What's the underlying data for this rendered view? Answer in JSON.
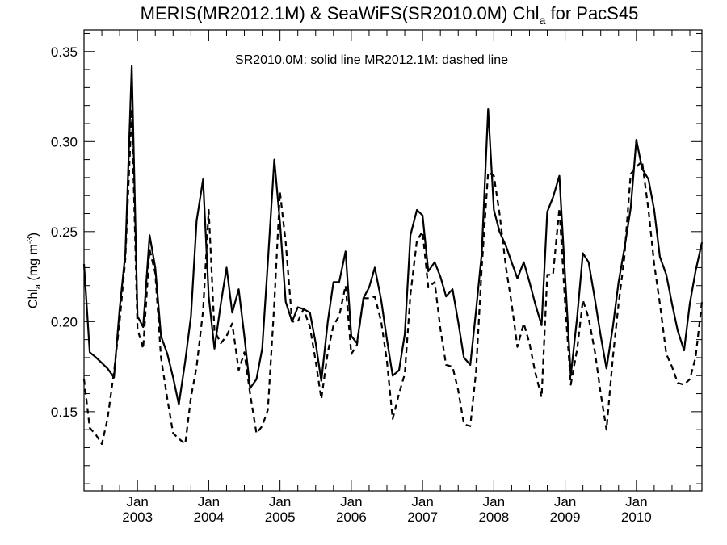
{
  "chart_data": {
    "type": "line",
    "title": "MERIS(MR2012.1M) & SeaWiFS(SR2010.0M)  Chl",
    "title_sub": "a",
    "title_suffix": " for PacS45",
    "annotation": "SR2010.0M: solid line   MR2012.1M: dashed line",
    "ylabel": "Chl",
    "ylabel_sub": "a",
    "ylabel_units_prefix": " (mg m",
    "ylabel_units_sup": "-3",
    "ylabel_units_suffix": ")",
    "ylim": [
      0.106,
      0.362
    ],
    "xlim": [
      2002.25,
      2010.92
    ],
    "yticks": [
      {
        "value": 0.15,
        "label": "0.15"
      },
      {
        "value": 0.2,
        "label": "0.20"
      },
      {
        "value": 0.25,
        "label": "0.25"
      },
      {
        "value": 0.3,
        "label": "0.30"
      },
      {
        "value": 0.35,
        "label": "0.35"
      }
    ],
    "xticks": [
      {
        "value": 2003,
        "month": "Jan",
        "year": "2003"
      },
      {
        "value": 2004,
        "month": "Jan",
        "year": "2004"
      },
      {
        "value": 2005,
        "month": "Jan",
        "year": "2005"
      },
      {
        "value": 2006,
        "month": "Jan",
        "year": "2006"
      },
      {
        "value": 2007,
        "month": "Jan",
        "year": "2007"
      },
      {
        "value": 2008,
        "month": "Jan",
        "year": "2008"
      },
      {
        "value": 2009,
        "month": "Jan",
        "year": "2009"
      },
      {
        "value": 2010,
        "month": "Jan",
        "year": "2010"
      }
    ],
    "series": [
      {
        "style": "solid",
        "color": "#000000",
        "points": [
          [
            2002.25,
            0.232
          ],
          [
            2002.33,
            0.183
          ],
          [
            2002.42,
            0.18
          ],
          [
            2002.5,
            0.177
          ],
          [
            2002.58,
            0.174
          ],
          [
            2002.67,
            0.169
          ],
          [
            2002.75,
            0.207
          ],
          [
            2002.83,
            0.238
          ],
          [
            2002.92,
            0.342
          ],
          [
            2003.0,
            0.203
          ],
          [
            2003.08,
            0.197
          ],
          [
            2003.17,
            0.248
          ],
          [
            2003.25,
            0.23
          ],
          [
            2003.33,
            0.192
          ],
          [
            2003.42,
            0.182
          ],
          [
            2003.5,
            0.169
          ],
          [
            2003.58,
            0.154
          ],
          [
            2003.67,
            0.178
          ],
          [
            2003.75,
            0.203
          ],
          [
            2003.83,
            0.256
          ],
          [
            2003.92,
            0.279
          ],
          [
            2004.0,
            0.214
          ],
          [
            2004.08,
            0.185
          ],
          [
            2004.17,
            0.21
          ],
          [
            2004.25,
            0.23
          ],
          [
            2004.33,
            0.205
          ],
          [
            2004.42,
            0.218
          ],
          [
            2004.5,
            0.192
          ],
          [
            2004.58,
            0.163
          ],
          [
            2004.67,
            0.168
          ],
          [
            2004.75,
            0.185
          ],
          [
            2004.83,
            0.233
          ],
          [
            2004.92,
            0.29
          ],
          [
            2005.0,
            0.255
          ],
          [
            2005.08,
            0.211
          ],
          [
            2005.17,
            0.2
          ],
          [
            2005.25,
            0.208
          ],
          [
            2005.33,
            0.207
          ],
          [
            2005.42,
            0.205
          ],
          [
            2005.5,
            0.188
          ],
          [
            2005.58,
            0.167
          ],
          [
            2005.67,
            0.2
          ],
          [
            2005.75,
            0.222
          ],
          [
            2005.83,
            0.222
          ],
          [
            2005.92,
            0.239
          ],
          [
            2006.0,
            0.192
          ],
          [
            2006.08,
            0.188
          ],
          [
            2006.17,
            0.213
          ],
          [
            2006.25,
            0.219
          ],
          [
            2006.33,
            0.23
          ],
          [
            2006.42,
            0.212
          ],
          [
            2006.5,
            0.19
          ],
          [
            2006.58,
            0.17
          ],
          [
            2006.67,
            0.173
          ],
          [
            2006.75,
            0.193
          ],
          [
            2006.83,
            0.248
          ],
          [
            2006.92,
            0.262
          ],
          [
            2007.0,
            0.259
          ],
          [
            2007.08,
            0.228
          ],
          [
            2007.17,
            0.233
          ],
          [
            2007.25,
            0.225
          ],
          [
            2007.33,
            0.214
          ],
          [
            2007.42,
            0.218
          ],
          [
            2007.5,
            0.2
          ],
          [
            2007.58,
            0.18
          ],
          [
            2007.67,
            0.176
          ],
          [
            2007.75,
            0.206
          ],
          [
            2007.83,
            0.238
          ],
          [
            2007.92,
            0.318
          ],
          [
            2008.0,
            0.262
          ],
          [
            2008.08,
            0.25
          ],
          [
            2008.17,
            0.242
          ],
          [
            2008.25,
            0.233
          ],
          [
            2008.33,
            0.224
          ],
          [
            2008.42,
            0.233
          ],
          [
            2008.5,
            0.222
          ],
          [
            2008.58,
            0.21
          ],
          [
            2008.67,
            0.198
          ],
          [
            2008.75,
            0.261
          ],
          [
            2008.83,
            0.269
          ],
          [
            2008.92,
            0.281
          ],
          [
            2009.0,
            0.225
          ],
          [
            2009.08,
            0.17
          ],
          [
            2009.17,
            0.203
          ],
          [
            2009.25,
            0.238
          ],
          [
            2009.33,
            0.233
          ],
          [
            2009.42,
            0.212
          ],
          [
            2009.5,
            0.192
          ],
          [
            2009.58,
            0.174
          ],
          [
            2009.67,
            0.197
          ],
          [
            2009.75,
            0.222
          ],
          [
            2009.83,
            0.24
          ],
          [
            2009.92,
            0.263
          ],
          [
            2010.0,
            0.301
          ],
          [
            2010.08,
            0.285
          ],
          [
            2010.17,
            0.279
          ],
          [
            2010.25,
            0.262
          ],
          [
            2010.33,
            0.236
          ],
          [
            2010.42,
            0.226
          ],
          [
            2010.5,
            0.21
          ],
          [
            2010.58,
            0.195
          ],
          [
            2010.67,
            0.184
          ],
          [
            2010.75,
            0.21
          ],
          [
            2010.83,
            0.228
          ],
          [
            2010.92,
            0.244
          ]
        ]
      },
      {
        "style": "dashed",
        "color": "#000000",
        "points": [
          [
            2002.25,
            0.168
          ],
          [
            2002.33,
            0.141
          ],
          [
            2002.42,
            0.137
          ],
          [
            2002.5,
            0.132
          ],
          [
            2002.58,
            0.146
          ],
          [
            2002.67,
            0.172
          ],
          [
            2002.75,
            0.2
          ],
          [
            2002.83,
            0.235
          ],
          [
            2002.92,
            0.318
          ],
          [
            2003.0,
            0.196
          ],
          [
            2003.08,
            0.185
          ],
          [
            2003.17,
            0.24
          ],
          [
            2003.25,
            0.227
          ],
          [
            2003.33,
            0.18
          ],
          [
            2003.42,
            0.157
          ],
          [
            2003.5,
            0.138
          ],
          [
            2003.58,
            0.135
          ],
          [
            2003.67,
            0.132
          ],
          [
            2003.75,
            0.158
          ],
          [
            2003.83,
            0.175
          ],
          [
            2003.92,
            0.206
          ],
          [
            2004.0,
            0.262
          ],
          [
            2004.08,
            0.195
          ],
          [
            2004.17,
            0.188
          ],
          [
            2004.25,
            0.192
          ],
          [
            2004.33,
            0.199
          ],
          [
            2004.42,
            0.173
          ],
          [
            2004.5,
            0.183
          ],
          [
            2004.58,
            0.16
          ],
          [
            2004.67,
            0.138
          ],
          [
            2004.75,
            0.142
          ],
          [
            2004.83,
            0.151
          ],
          [
            2004.92,
            0.21
          ],
          [
            2005.0,
            0.272
          ],
          [
            2005.08,
            0.244
          ],
          [
            2005.17,
            0.2
          ],
          [
            2005.25,
            0.2
          ],
          [
            2005.33,
            0.207
          ],
          [
            2005.42,
            0.197
          ],
          [
            2005.5,
            0.178
          ],
          [
            2005.58,
            0.157
          ],
          [
            2005.67,
            0.183
          ],
          [
            2005.75,
            0.198
          ],
          [
            2005.83,
            0.203
          ],
          [
            2005.92,
            0.22
          ],
          [
            2006.0,
            0.182
          ],
          [
            2006.08,
            0.187
          ],
          [
            2006.17,
            0.213
          ],
          [
            2006.25,
            0.213
          ],
          [
            2006.33,
            0.214
          ],
          [
            2006.42,
            0.2
          ],
          [
            2006.5,
            0.178
          ],
          [
            2006.58,
            0.146
          ],
          [
            2006.67,
            0.16
          ],
          [
            2006.75,
            0.171
          ],
          [
            2006.83,
            0.215
          ],
          [
            2006.92,
            0.245
          ],
          [
            2007.0,
            0.25
          ],
          [
            2007.08,
            0.219
          ],
          [
            2007.17,
            0.222
          ],
          [
            2007.25,
            0.196
          ],
          [
            2007.33,
            0.176
          ],
          [
            2007.42,
            0.175
          ],
          [
            2007.5,
            0.162
          ],
          [
            2007.58,
            0.143
          ],
          [
            2007.67,
            0.142
          ],
          [
            2007.75,
            0.172
          ],
          [
            2007.83,
            0.23
          ],
          [
            2007.92,
            0.283
          ],
          [
            2008.0,
            0.281
          ],
          [
            2008.08,
            0.26
          ],
          [
            2008.17,
            0.23
          ],
          [
            2008.25,
            0.21
          ],
          [
            2008.33,
            0.186
          ],
          [
            2008.42,
            0.199
          ],
          [
            2008.5,
            0.188
          ],
          [
            2008.58,
            0.172
          ],
          [
            2008.67,
            0.158
          ],
          [
            2008.75,
            0.226
          ],
          [
            2008.83,
            0.226
          ],
          [
            2008.92,
            0.263
          ],
          [
            2009.0,
            0.21
          ],
          [
            2009.08,
            0.165
          ],
          [
            2009.17,
            0.185
          ],
          [
            2009.25,
            0.212
          ],
          [
            2009.33,
            0.202
          ],
          [
            2009.42,
            0.183
          ],
          [
            2009.5,
            0.16
          ],
          [
            2009.58,
            0.14
          ],
          [
            2009.67,
            0.18
          ],
          [
            2009.75,
            0.21
          ],
          [
            2009.83,
            0.235
          ],
          [
            2009.92,
            0.282
          ],
          [
            2010.0,
            0.286
          ],
          [
            2010.08,
            0.289
          ],
          [
            2010.17,
            0.262
          ],
          [
            2010.25,
            0.232
          ],
          [
            2010.33,
            0.21
          ],
          [
            2010.42,
            0.182
          ],
          [
            2010.5,
            0.175
          ],
          [
            2010.58,
            0.166
          ],
          [
            2010.67,
            0.165
          ],
          [
            2010.75,
            0.168
          ],
          [
            2010.83,
            0.18
          ],
          [
            2010.92,
            0.211
          ]
        ]
      }
    ]
  }
}
